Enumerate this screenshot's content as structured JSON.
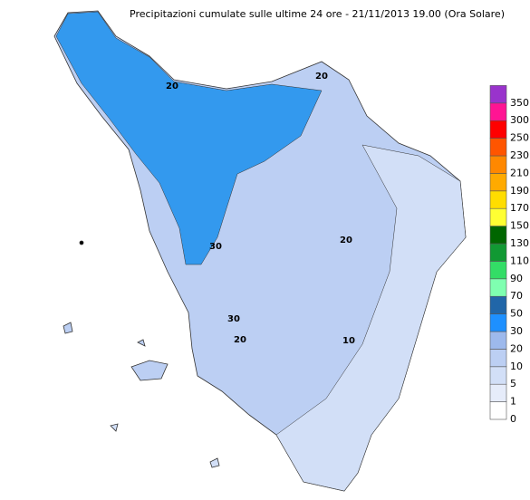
{
  "map": {
    "title": "Precipitazioni cumulate sulle ultime 24 ore - 21/11/2013 19.00 (Ora Solare)",
    "contour_labels": [
      "20",
      "20",
      "30",
      "30",
      "20",
      "10",
      "20"
    ],
    "legend": [
      {
        "value": 0,
        "color": "#ffffff"
      },
      {
        "value": 1,
        "color": "#e6ecfa"
      },
      {
        "value": 5,
        "color": "#d2dff7"
      },
      {
        "value": 10,
        "color": "#bccff3"
      },
      {
        "value": 20,
        "color": "#9db9ec"
      },
      {
        "value": 30,
        "color": "#1e90ff"
      },
      {
        "value": 50,
        "color": "#2166a8"
      },
      {
        "value": 70,
        "color": "#7fffb0"
      },
      {
        "value": 90,
        "color": "#33dd66"
      },
      {
        "value": 110,
        "color": "#119933"
      },
      {
        "value": 130,
        "color": "#006600"
      },
      {
        "value": 150,
        "color": "#ffff33"
      },
      {
        "value": 170,
        "color": "#ffdd00"
      },
      {
        "value": 190,
        "color": "#ffaa00"
      },
      {
        "value": 210,
        "color": "#ff8800"
      },
      {
        "value": 230,
        "color": "#ff5500"
      },
      {
        "value": 250,
        "color": "#ff0000"
      },
      {
        "value": 300,
        "color": "#ff1493"
      },
      {
        "value": 350,
        "color": "#9933cc"
      }
    ]
  }
}
